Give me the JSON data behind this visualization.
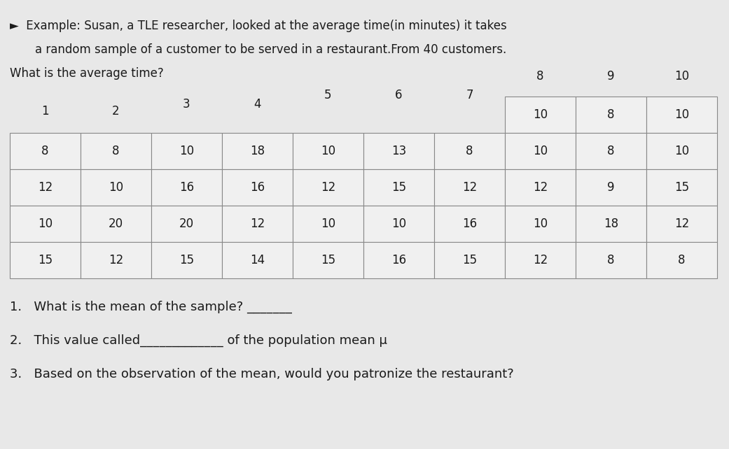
{
  "title_line1": "Example: Susan, a TLE researcher, looked at the average time(in minutes) it takes",
  "title_line2": "a random sample of a customer to be served in a restaurant.From 40 customers.",
  "title_line3": "What is the average time?",
  "col_headers": [
    "1",
    "2",
    "3",
    "4",
    "5",
    "6",
    "7",
    "8",
    "9",
    "10"
  ],
  "table_data": {
    "col1": [
      "8",
      "12",
      "10",
      "15"
    ],
    "col2": [
      "8",
      "10",
      "20",
      "12"
    ],
    "col3": [
      "10",
      "16",
      "20",
      "15"
    ],
    "col4": [
      "18",
      "16",
      "12",
      "14"
    ],
    "col5": [
      "10",
      "12",
      "10",
      "15"
    ],
    "col6": [
      "13",
      "15",
      "10",
      "16"
    ],
    "col7": [
      "8",
      "12",
      "16",
      "15"
    ],
    "col8": [
      "10",
      "12",
      "10",
      "12"
    ],
    "col9": [
      "8",
      "9",
      "18",
      "8"
    ],
    "col10": [
      "10",
      "15",
      "12",
      "8"
    ]
  },
  "col_extra_top": {
    "col8": "10",
    "col9": "8",
    "col10": "10"
  },
  "questions": [
    "1.   What is the mean of the sample? _______",
    "2.   This value called_____________ of the population mean μ",
    "3.   Based on the observation of the mean, would you patronize the restaurant?"
  ],
  "bg_color": "#e8e8e8",
  "text_color": "#1a1a1a",
  "table_bg": "#f0f0f0",
  "border_color": "#888888",
  "arrow_symbol": "►"
}
